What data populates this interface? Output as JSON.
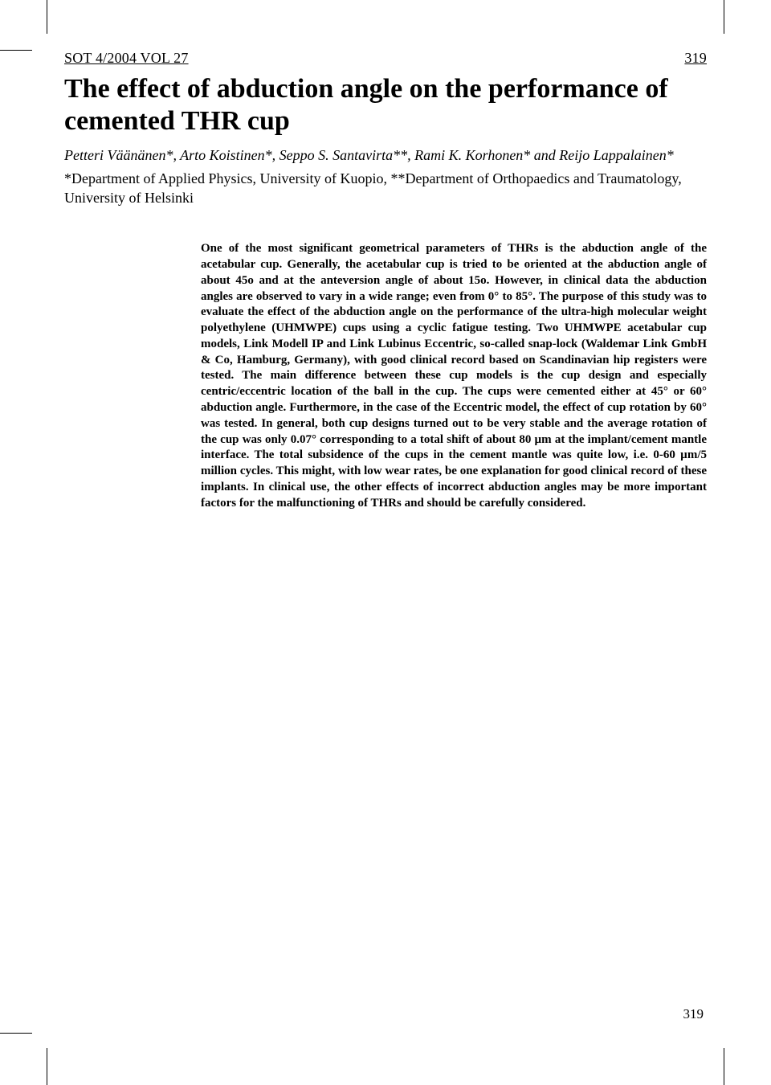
{
  "header": {
    "running_left": "SOT 4/2004 VOL 27",
    "running_right": "319"
  },
  "title": "The effect of abduction angle on the performance of cemented THR cup",
  "authors": "Petteri Väänänen*, Arto Koistinen*, Seppo S. Santavirta**, Rami K. Korhonen* and Reijo Lappalainen*",
  "affiliations": "*Department of Applied Physics, University of Kuopio, **Department of Orthopaedics and Traumatology, University of Helsinki",
  "abstract": "One of the most significant geometrical parameters of THRs is the abduction angle of the acetabular cup. Generally, the acetabular cup is tried to be oriented at the abduction angle of about 45o and at the anteversion angle of about 15o. However, in clinical data the abduction angles are observed to vary in a wide range; even from 0° to 85°. The purpose of this study was to evaluate the effect of the abduction angle on the performance of the ultra-high molecular weight polyethylene (UHMWPE) cups using a cyclic fatigue testing. Two UHMWPE acetabular cup models, Link Modell IP and Link Lubinus Eccentric, so-called snap-lock (Waldemar Link GmbH & Co, Hamburg, Germany), with good clinical record based on Scandinavian hip registers were tested. The main difference between these cup models is the cup design and especially centric/eccentric location of the ball in the cup. The cups were cemented either at 45° or 60° abduction angle. Furthermore, in the case of the Eccentric model, the effect of cup rotation by 60° was tested. In general, both cup designs turned out to be very stable and the average rotation of the cup was only 0.07° corresponding to a total shift of about 80 µm at the implant/cement mantle interface. The total subsidence of the cups in the cement mantle was quite low, i.e. 0-60 µm/5 million cycles. This might, with low wear rates, be one explanation for good clinical record of these implants. In clinical use, the other effects of incorrect abduction angles may be more important factors for the malfunctioning of THRs and should be carefully considered.",
  "page_number": "319"
}
